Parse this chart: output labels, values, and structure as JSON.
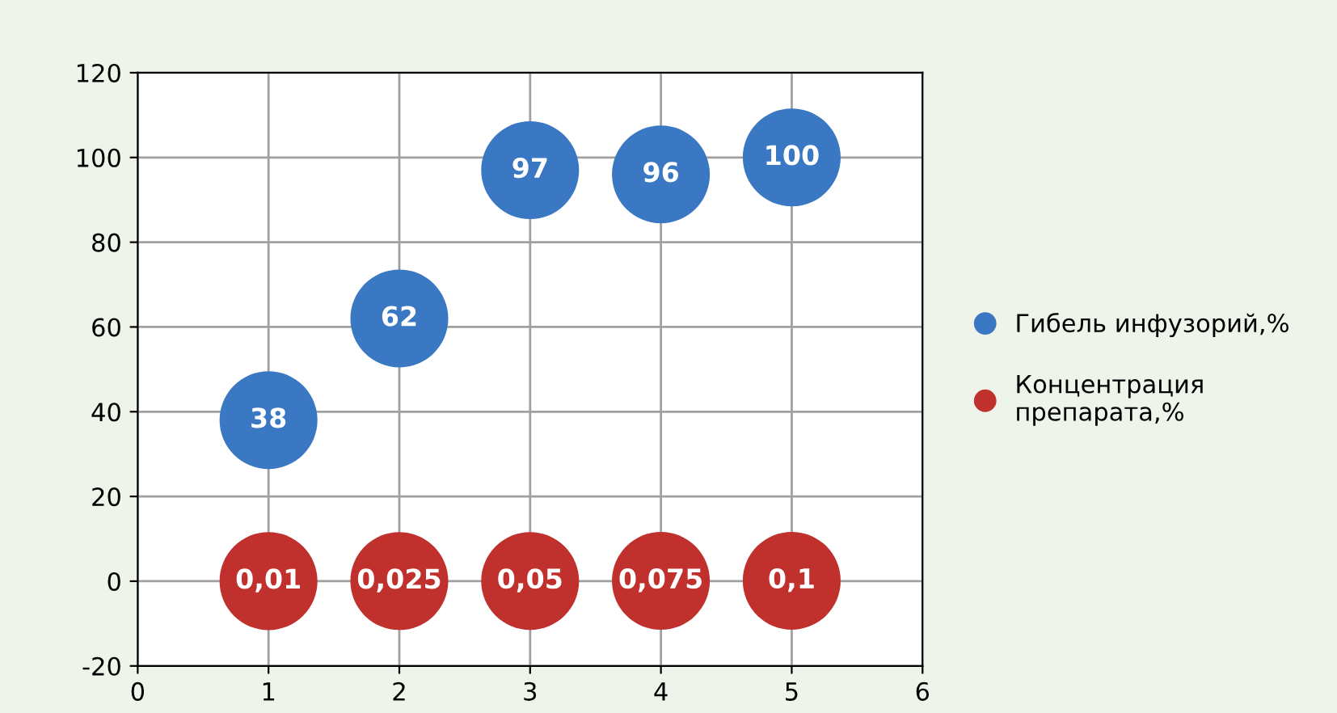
{
  "chart_data": {
    "type": "scatter",
    "marker": "circle",
    "xlim": [
      0,
      6
    ],
    "ylim": [
      -20,
      120
    ],
    "xticks": [
      0,
      1,
      2,
      3,
      4,
      5,
      6
    ],
    "yticks": [
      -20,
      0,
      20,
      40,
      60,
      80,
      100,
      120
    ],
    "grid": true,
    "legend": "right",
    "series": [
      {
        "name": "Гибель инфузорий,%",
        "color": "#3b78c3",
        "x": [
          1,
          2,
          3,
          4,
          5
        ],
        "values": [
          38,
          62,
          97,
          96,
          100
        ],
        "value_labels": [
          "38",
          "62",
          "97",
          "96",
          "100"
        ]
      },
      {
        "name": "Концентрация препарата,%",
        "color": "#c0312d",
        "x": [
          1,
          2,
          3,
          4,
          5
        ],
        "values": [
          0.01,
          0.025,
          0.05,
          0.075,
          0.1
        ],
        "value_labels": [
          "0,01",
          "0,025",
          "0,05",
          "0,075",
          "0,1"
        ]
      }
    ]
  }
}
